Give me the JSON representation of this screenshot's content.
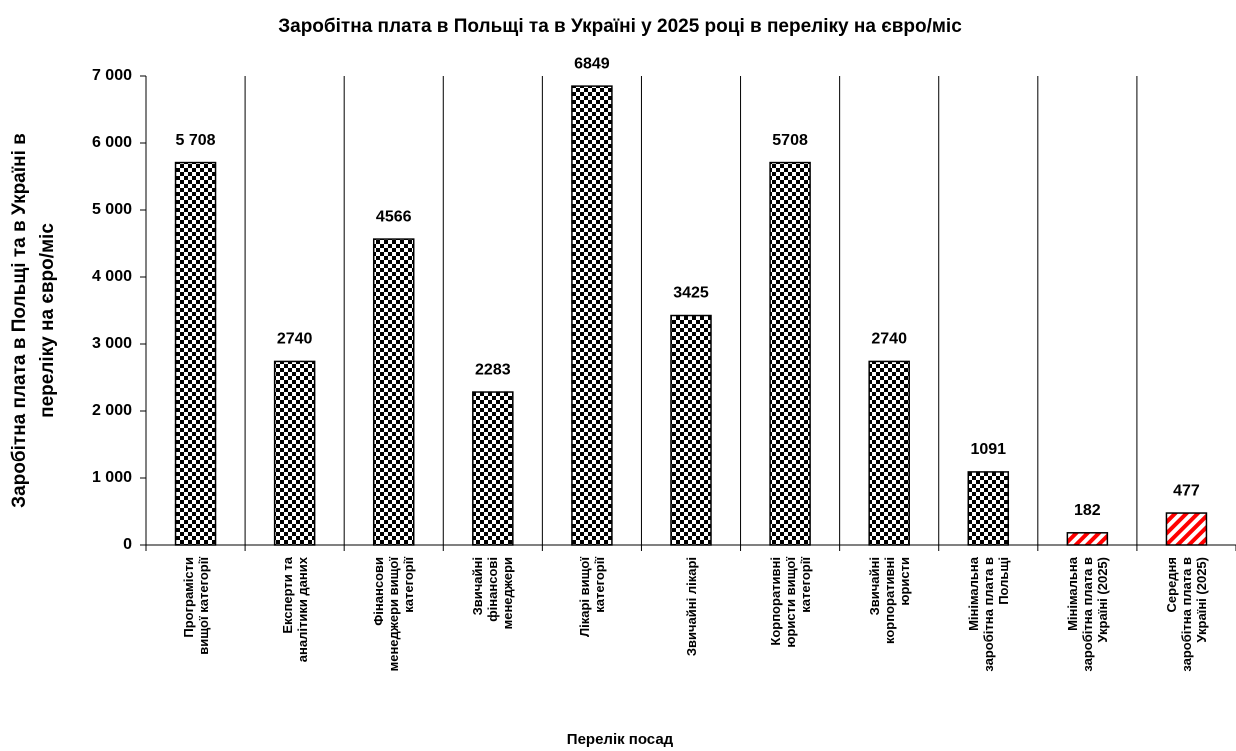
{
  "chart_data": {
    "type": "bar",
    "title": "Заробітна плата в Польщі та в Україні у 2025 році в переліку на євро/міс",
    "y_label": "Заробітна плата в Польщі та в Україні в\nпереліку на євро/міс",
    "x_label": "Перелік посад",
    "categories": [
      "Програмісти\nвищої категорії",
      "Експерти та\nаналітики даних",
      "Фінансови\nменеджери вищої\nкатегорії",
      "Звичайні\nфінансові\nменеджери",
      "Лікарі вищої\nкатегорії",
      "Звичайні лікарі",
      "Корпоративні\nюристи вищої\nкатегорії",
      "Звичайні\nкорпоративні\nюристи",
      "Мінімальна\nзаробітна плата в\nПольщі",
      "Мінімальна\nзаробітна плата в\nУкраїні (2025)",
      "Середня\nзаробітна плата в\nУкраїні (2025)"
    ],
    "values": [
      5708,
      2740,
      4566,
      2283,
      6849,
      3425,
      5708,
      2740,
      1091,
      182,
      477
    ],
    "value_labels": [
      "5 708",
      "2740",
      "4566",
      "2283",
      "6849",
      "3425",
      "5708",
      "2740",
      "1091",
      "182",
      "477"
    ],
    "colors": [
      "#000000",
      "#000000",
      "#000000",
      "#000000",
      "#000000",
      "#000000",
      "#000000",
      "#000000",
      "#000000",
      "#ff0000",
      "#ff0000"
    ],
    "patterns": [
      "checkered",
      "checkered",
      "checkered",
      "checkered",
      "checkered",
      "checkered",
      "checkered",
      "checkered",
      "checkered",
      "hatched",
      "hatched"
    ],
    "ylim": [
      0,
      7000
    ],
    "yticks": [
      0,
      {
        "value": 1000,
        "label": "1 000"
      },
      {
        "value": 2000,
        "label": "2 000"
      },
      {
        "value": 3000,
        "label": "3 000"
      },
      {
        "value": 4000,
        "label": "4 000"
      },
      {
        "value": 5000,
        "label": "5 000"
      },
      {
        "value": 6000,
        "label": "6 000"
      },
      {
        "value": 7000,
        "label": "7 000"
      }
    ],
    "grid": "vertical"
  }
}
